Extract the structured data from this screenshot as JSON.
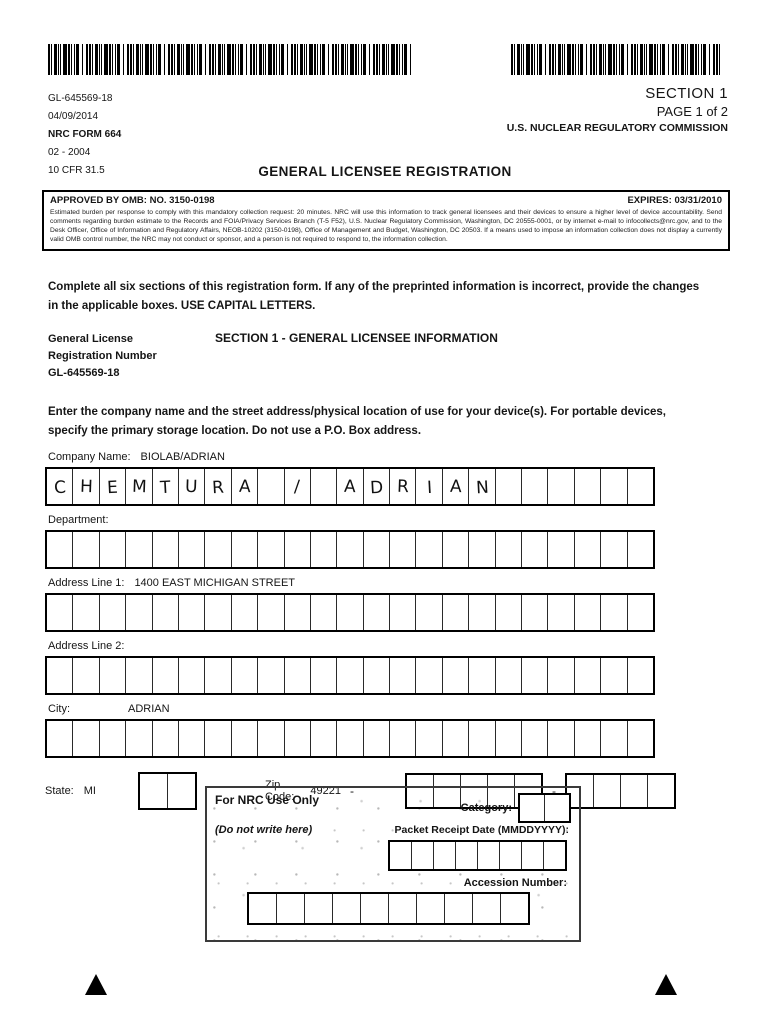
{
  "meta": {
    "registration_id": "GL-645569-18",
    "date": "04/09/2014",
    "form": "NRC FORM 664",
    "revision": "02 - 2004",
    "cfr": "10 CFR 31.5"
  },
  "corner": {
    "section": "SECTION 1",
    "page": "PAGE 1 of 2",
    "agency": "U.S. NUCLEAR REGULATORY COMMISSION"
  },
  "title": "GENERAL LICENSEE REGISTRATION",
  "omb": {
    "approved": "APPROVED BY OMB:  NO. 3150-0198",
    "expires": "EXPIRES:  03/31/2010",
    "burden": "Estimated burden per response to comply with this mandatory collection request: 20 minutes.  NRC will use this information to track general licensees and their devices to ensure a higher level of device accountability.  Send comments regarding burden estimate to the Records and FOIA/Privacy Services Branch (T-5 F52), U.S. Nuclear Regulatory Commission, Washington, DC 20555-0001, or by internet e-mail to infocollects@nrc.gov, and to the Desk Officer, Office of Information and Regulatory Affairs, NEOB-10202 (3150-0198), Office of Management and Budget, Washington, DC 20503.  If a means used to impose an information collection does not display a currently valid OMB control number, the NRC may not conduct or sponsor, and a person is not required to respond to, the information collection."
  },
  "instructions": "Complete all six sections of this registration form.  If any of the preprinted information is incorrect, provide the changes in the applicable boxes.  USE CAPITAL LETTERS.",
  "registration": {
    "label1": "General License",
    "label2": "Registration Number",
    "number": "GL-645569-18",
    "section_heading": "SECTION 1 - GENERAL LICENSEE INFORMATION"
  },
  "address_note": "Enter the company name and the street address/physical location of use for your device(s).  For portable devices, specify the primary storage location.  Do not use a P.O. Box address.",
  "fields": {
    "company": {
      "label": "Company Name:",
      "value": "BIOLAB/ADRIAN",
      "grid": [
        "C",
        "H",
        "E",
        "M",
        "T",
        "U",
        "R",
        "A",
        "",
        "/",
        "",
        "A",
        "D",
        "R",
        "I",
        "A",
        "N",
        "",
        "",
        "",
        "",
        "",
        ""
      ]
    },
    "department": {
      "label": "Department:",
      "cells": 23
    },
    "address1": {
      "label": "Address Line 1:",
      "value": "1400 EAST MICHIGAN STREET",
      "cells": 23
    },
    "address2": {
      "label": "Address Line 2:",
      "cells": 23
    },
    "city": {
      "label": "City:",
      "value": "ADRIAN",
      "cells": 23
    },
    "state": {
      "label": "State:",
      "value": "MI",
      "boxes": 2
    },
    "zip": {
      "label": "Zip Code:",
      "value": "49221",
      "separator": "-",
      "boxes_main": 5,
      "boxes_ext": 4
    }
  },
  "nrc_use": {
    "title": "For NRC Use Only",
    "subtitle": "(Do not write here)",
    "category_label": "Category:",
    "category_boxes": 2,
    "packet_label": "Packet Receipt Date (MMDDYYYY):",
    "packet_boxes": 8,
    "accession_label": "Accession Number:",
    "accession_boxes": 10
  }
}
